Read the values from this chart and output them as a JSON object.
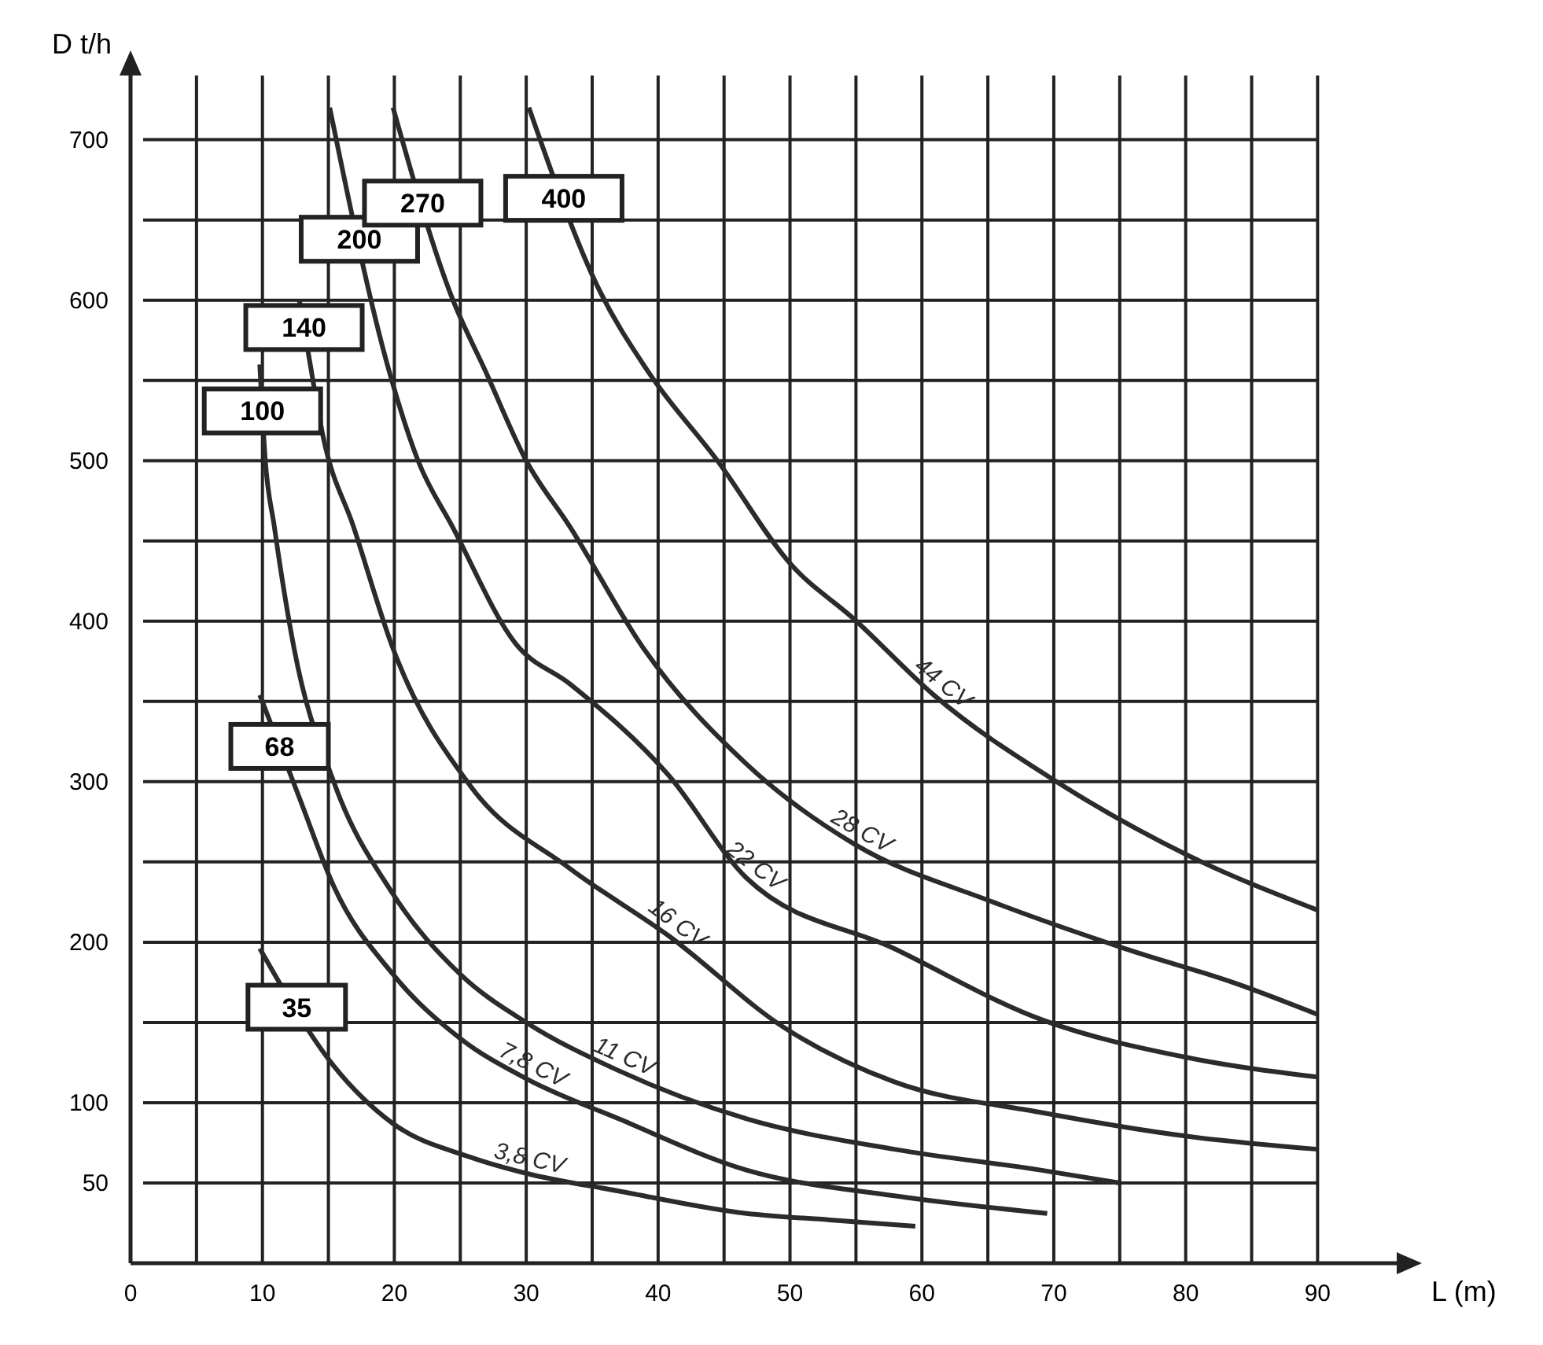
{
  "chart_data": {
    "type": "line",
    "xlabel": "L (m)",
    "ylabel": "D t/h",
    "xlim": [
      0,
      96
    ],
    "ylim": [
      0,
      740
    ],
    "xticks": [
      0,
      {
        "value": 5,
        "label": null
      },
      10,
      {
        "value": 15,
        "label": null
      },
      20,
      {
        "value": 25,
        "label": null
      },
      30,
      {
        "value": 35,
        "label": null
      },
      40,
      {
        "value": 45,
        "label": null
      },
      50,
      {
        "value": 55,
        "label": null
      },
      60,
      {
        "value": 65,
        "label": null
      },
      70,
      {
        "value": 75,
        "label": null
      },
      80,
      {
        "value": 85,
        "label": null
      },
      90
    ],
    "yticks": [
      50,
      100,
      {
        "value": 150,
        "label": null
      },
      200,
      {
        "value": 250,
        "label": null
      },
      300,
      {
        "value": 350,
        "label": null
      },
      400,
      {
        "value": 450,
        "label": null
      },
      500,
      {
        "value": 550,
        "label": null
      },
      600,
      {
        "value": 650,
        "label": null
      },
      700
    ],
    "grid": true,
    "legend": false,
    "marker": "none",
    "line_style": "solid",
    "series": [
      {
        "name": "3,8 CV",
        "color": "#2b2b2b",
        "x": [
          9.8,
          15.4,
          19.9,
          25.8,
          30,
          37,
          46.7,
          53,
          59.5
        ],
        "values": [
          196,
          123,
          87,
          66,
          56,
          45,
          31,
          27,
          23
        ]
      },
      {
        "name": "7,8 CV",
        "color": "#2b2b2b",
        "x": [
          9.8,
          12.8,
          15.4,
          19.9,
          25,
          30,
          37,
          46.7,
          57.9,
          69.5
        ],
        "values": [
          354,
          290,
          235,
          180,
          140,
          115,
          90,
          58,
          42,
          31
        ]
      },
      {
        "name": "11 CV",
        "color": "#2b2b2b",
        "x": [
          9.8,
          10.2,
          10.9,
          12.4,
          15.4,
          19.9,
          25,
          30,
          37,
          46.7,
          57.9,
          69,
          75
        ],
        "values": [
          560,
          502,
          459,
          383,
          300,
          230,
          180,
          150,
          120,
          90,
          71,
          58,
          50
        ]
      },
      {
        "name": "16 CV",
        "color": "#2b2b2b",
        "x": [
          12.8,
          13.5,
          14.6,
          16.9,
          19.9,
          25.8,
          33.3,
          40.8,
          49.7,
          57.9,
          69,
          80.2,
          90
        ],
        "values": [
          600,
          566,
          515,
          459,
          383,
          297,
          246,
          204,
          146,
          113,
          94,
          79,
          71
        ]
      },
      {
        "name": "22 CV",
        "color": "#2b2b2b",
        "x": [
          15.1,
          19.6,
          21.8,
          24.4,
          29.2,
          33.3,
          40.8,
          46.7,
          57.9,
          69,
          80.2,
          90
        ],
        "values": [
          720,
          556,
          500,
          459,
          386,
          361,
          304,
          240,
          196,
          152,
          128,
          116
        ]
      },
      {
        "name": "28 CV",
        "color": "#2b2b2b",
        "x": [
          19.9,
          24.4,
          26.9,
          30,
          33.3,
          38.9,
          46.7,
          54.9,
          65.4,
          75.4,
          83.9,
          90
        ],
        "values": [
          720,
          601,
          556,
          500,
          459,
          383,
          311,
          261,
          225,
          196,
          174,
          155
        ]
      },
      {
        "name": "44 CV",
        "color": "#2b2b2b",
        "x": [
          30.2,
          35.5,
          39.2,
          44.5,
          50,
          54.9,
          60.9,
          70.2,
          80.2,
          90
        ],
        "values": [
          720,
          607,
          556,
          500,
          436,
          401,
          354,
          300,
          254,
          220
        ]
      }
    ],
    "annotations": [
      "35",
      "68",
      "100",
      "140",
      "200",
      "270",
      "400"
    ]
  }
}
